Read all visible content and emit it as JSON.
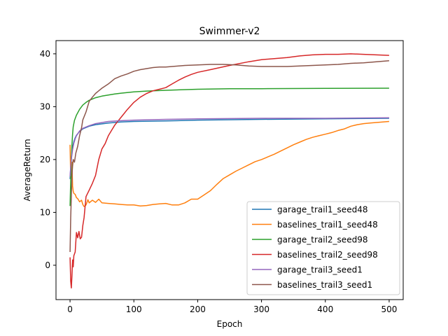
{
  "chart_data": {
    "type": "line",
    "title": "Swimmer-v2",
    "xlabel": "Epoch",
    "ylabel": "AverageReturn",
    "xlim": [
      -22,
      522
    ],
    "ylim": [
      -6.5,
      42.5
    ],
    "xticks": [
      0,
      100,
      200,
      300,
      400,
      500
    ],
    "yticks": [
      0,
      10,
      20,
      30,
      40
    ],
    "grid": false,
    "legend_position": "lower-right",
    "series": [
      {
        "name": "garage_trail1_seed48",
        "color": "#1f77b4",
        "points": [
          [
            0,
            16.3
          ],
          [
            1,
            18.5
          ],
          [
            2,
            20.5
          ],
          [
            4,
            22.3
          ],
          [
            6,
            23.4
          ],
          [
            8,
            24.1
          ],
          [
            10,
            24.6
          ],
          [
            15,
            25.3
          ],
          [
            20,
            25.8
          ],
          [
            30,
            26.3
          ],
          [
            40,
            26.6
          ],
          [
            60,
            26.9
          ],
          [
            80,
            27.1
          ],
          [
            100,
            27.2
          ],
          [
            150,
            27.3
          ],
          [
            200,
            27.45
          ],
          [
            300,
            27.6
          ],
          [
            400,
            27.7
          ],
          [
            500,
            27.8
          ]
        ]
      },
      {
        "name": "baselines_trail1_seed48",
        "color": "#ff7f0e",
        "points": [
          [
            0,
            22.8
          ],
          [
            1,
            16.5
          ],
          [
            2,
            17.2
          ],
          [
            3,
            19.5
          ],
          [
            4,
            15.0
          ],
          [
            5,
            14.0
          ],
          [
            6,
            13.6
          ],
          [
            8,
            13.4
          ],
          [
            10,
            12.8
          ],
          [
            12,
            12.6
          ],
          [
            15,
            12.0
          ],
          [
            18,
            12.3
          ],
          [
            20,
            11.5
          ],
          [
            22,
            11.1
          ],
          [
            25,
            11.4
          ],
          [
            28,
            12.4
          ],
          [
            30,
            11.8
          ],
          [
            35,
            12.3
          ],
          [
            40,
            11.9
          ],
          [
            45,
            12.5
          ],
          [
            50,
            11.8
          ],
          [
            60,
            11.7
          ],
          [
            70,
            11.6
          ],
          [
            80,
            11.5
          ],
          [
            90,
            11.4
          ],
          [
            100,
            11.4
          ],
          [
            110,
            11.2
          ],
          [
            120,
            11.3
          ],
          [
            130,
            11.5
          ],
          [
            140,
            11.6
          ],
          [
            150,
            11.7
          ],
          [
            160,
            11.4
          ],
          [
            170,
            11.4
          ],
          [
            180,
            11.8
          ],
          [
            190,
            12.5
          ],
          [
            200,
            12.5
          ],
          [
            210,
            13.3
          ],
          [
            220,
            14.1
          ],
          [
            230,
            15.3
          ],
          [
            240,
            16.4
          ],
          [
            250,
            17.1
          ],
          [
            260,
            17.8
          ],
          [
            270,
            18.4
          ],
          [
            280,
            19.0
          ],
          [
            290,
            19.6
          ],
          [
            300,
            20.0
          ],
          [
            310,
            20.5
          ],
          [
            320,
            21.0
          ],
          [
            330,
            21.6
          ],
          [
            340,
            22.2
          ],
          [
            350,
            22.8
          ],
          [
            360,
            23.3
          ],
          [
            370,
            23.8
          ],
          [
            380,
            24.2
          ],
          [
            390,
            24.5
          ],
          [
            400,
            24.8
          ],
          [
            410,
            25.1
          ],
          [
            420,
            25.5
          ],
          [
            430,
            25.8
          ],
          [
            440,
            26.3
          ],
          [
            450,
            26.6
          ],
          [
            460,
            26.8
          ],
          [
            470,
            26.9
          ],
          [
            480,
            27.0
          ],
          [
            490,
            27.1
          ],
          [
            500,
            27.2
          ]
        ]
      },
      {
        "name": "garage_trail2_seed98",
        "color": "#2ca02c",
        "points": [
          [
            0,
            11.2
          ],
          [
            1,
            16.0
          ],
          [
            2,
            20.0
          ],
          [
            3,
            22.8
          ],
          [
            4,
            24.8
          ],
          [
            5,
            26.2
          ],
          [
            7,
            27.4
          ],
          [
            10,
            28.4
          ],
          [
            15,
            29.5
          ],
          [
            20,
            30.3
          ],
          [
            25,
            30.8
          ],
          [
            30,
            31.2
          ],
          [
            40,
            31.7
          ],
          [
            50,
            32.0
          ],
          [
            60,
            32.2
          ],
          [
            70,
            32.4
          ],
          [
            80,
            32.55
          ],
          [
            100,
            32.8
          ],
          [
            120,
            32.95
          ],
          [
            150,
            33.1
          ],
          [
            200,
            33.3
          ],
          [
            250,
            33.4
          ],
          [
            300,
            33.4
          ],
          [
            400,
            33.45
          ],
          [
            500,
            33.5
          ]
        ]
      },
      {
        "name": "baselines_trail2_seed98",
        "color": "#d62728",
        "points": [
          [
            0,
            1.5
          ],
          [
            1,
            -3.0
          ],
          [
            2,
            -4.3
          ],
          [
            3,
            -2.0
          ],
          [
            4,
            1.0
          ],
          [
            5,
            -0.3
          ],
          [
            6,
            1.8
          ],
          [
            8,
            2.5
          ],
          [
            10,
            6.2
          ],
          [
            12,
            5.2
          ],
          [
            14,
            6.4
          ],
          [
            16,
            5.0
          ],
          [
            18,
            5.3
          ],
          [
            20,
            7.5
          ],
          [
            22,
            9.0
          ],
          [
            25,
            13.0
          ],
          [
            30,
            14.2
          ],
          [
            35,
            15.5
          ],
          [
            40,
            17.0
          ],
          [
            45,
            20.0
          ],
          [
            50,
            22.0
          ],
          [
            55,
            23.0
          ],
          [
            60,
            24.5
          ],
          [
            65,
            25.5
          ],
          [
            70,
            26.5
          ],
          [
            80,
            28.0
          ],
          [
            90,
            29.5
          ],
          [
            100,
            30.8
          ],
          [
            110,
            31.8
          ],
          [
            120,
            32.5
          ],
          [
            130,
            33.0
          ],
          [
            140,
            33.3
          ],
          [
            150,
            33.6
          ],
          [
            160,
            34.3
          ],
          [
            170,
            35.0
          ],
          [
            180,
            35.6
          ],
          [
            190,
            36.1
          ],
          [
            200,
            36.5
          ],
          [
            220,
            37.0
          ],
          [
            250,
            37.8
          ],
          [
            280,
            38.5
          ],
          [
            300,
            38.9
          ],
          [
            320,
            39.1
          ],
          [
            340,
            39.3
          ],
          [
            360,
            39.6
          ],
          [
            380,
            39.8
          ],
          [
            400,
            39.9
          ],
          [
            420,
            39.9
          ],
          [
            440,
            40.0
          ],
          [
            460,
            39.9
          ],
          [
            480,
            39.8
          ],
          [
            500,
            39.7
          ]
        ]
      },
      {
        "name": "garage_trail3_seed1",
        "color": "#9467bd",
        "points": [
          [
            0,
            16.8
          ],
          [
            1,
            18.6
          ],
          [
            2,
            20.0
          ],
          [
            4,
            21.9
          ],
          [
            6,
            23.1
          ],
          [
            8,
            23.9
          ],
          [
            10,
            24.5
          ],
          [
            15,
            25.4
          ],
          [
            20,
            25.9
          ],
          [
            30,
            26.4
          ],
          [
            40,
            26.8
          ],
          [
            60,
            27.2
          ],
          [
            80,
            27.35
          ],
          [
            100,
            27.45
          ],
          [
            150,
            27.6
          ],
          [
            200,
            27.7
          ],
          [
            300,
            27.8
          ],
          [
            400,
            27.8
          ],
          [
            500,
            27.9
          ]
        ]
      },
      {
        "name": "baselines_trail3_seed1",
        "color": "#8c564b",
        "points": [
          [
            0,
            2.5
          ],
          [
            1,
            9.0
          ],
          [
            2,
            13.0
          ],
          [
            3,
            17.0
          ],
          [
            4,
            18.8
          ],
          [
            5,
            20.0
          ],
          [
            7,
            19.5
          ],
          [
            9,
            21.2
          ],
          [
            12,
            22.5
          ],
          [
            15,
            24.5
          ],
          [
            18,
            26.0
          ],
          [
            20,
            27.5
          ],
          [
            25,
            29.0
          ],
          [
            30,
            31.0
          ],
          [
            35,
            31.8
          ],
          [
            40,
            32.5
          ],
          [
            45,
            33.0
          ],
          [
            50,
            33.5
          ],
          [
            60,
            34.3
          ],
          [
            70,
            35.3
          ],
          [
            80,
            35.8
          ],
          [
            90,
            36.2
          ],
          [
            100,
            36.7
          ],
          [
            110,
            37.0
          ],
          [
            120,
            37.2
          ],
          [
            130,
            37.4
          ],
          [
            140,
            37.5
          ],
          [
            150,
            37.5
          ],
          [
            160,
            37.6
          ],
          [
            170,
            37.7
          ],
          [
            180,
            37.8
          ],
          [
            200,
            37.9
          ],
          [
            220,
            38.0
          ],
          [
            240,
            38.0
          ],
          [
            260,
            37.9
          ],
          [
            280,
            37.7
          ],
          [
            300,
            37.6
          ],
          [
            320,
            37.6
          ],
          [
            340,
            37.6
          ],
          [
            360,
            37.7
          ],
          [
            380,
            37.8
          ],
          [
            400,
            37.9
          ],
          [
            420,
            38.0
          ],
          [
            440,
            38.2
          ],
          [
            460,
            38.3
          ],
          [
            480,
            38.5
          ],
          [
            500,
            38.7
          ]
        ]
      }
    ]
  }
}
